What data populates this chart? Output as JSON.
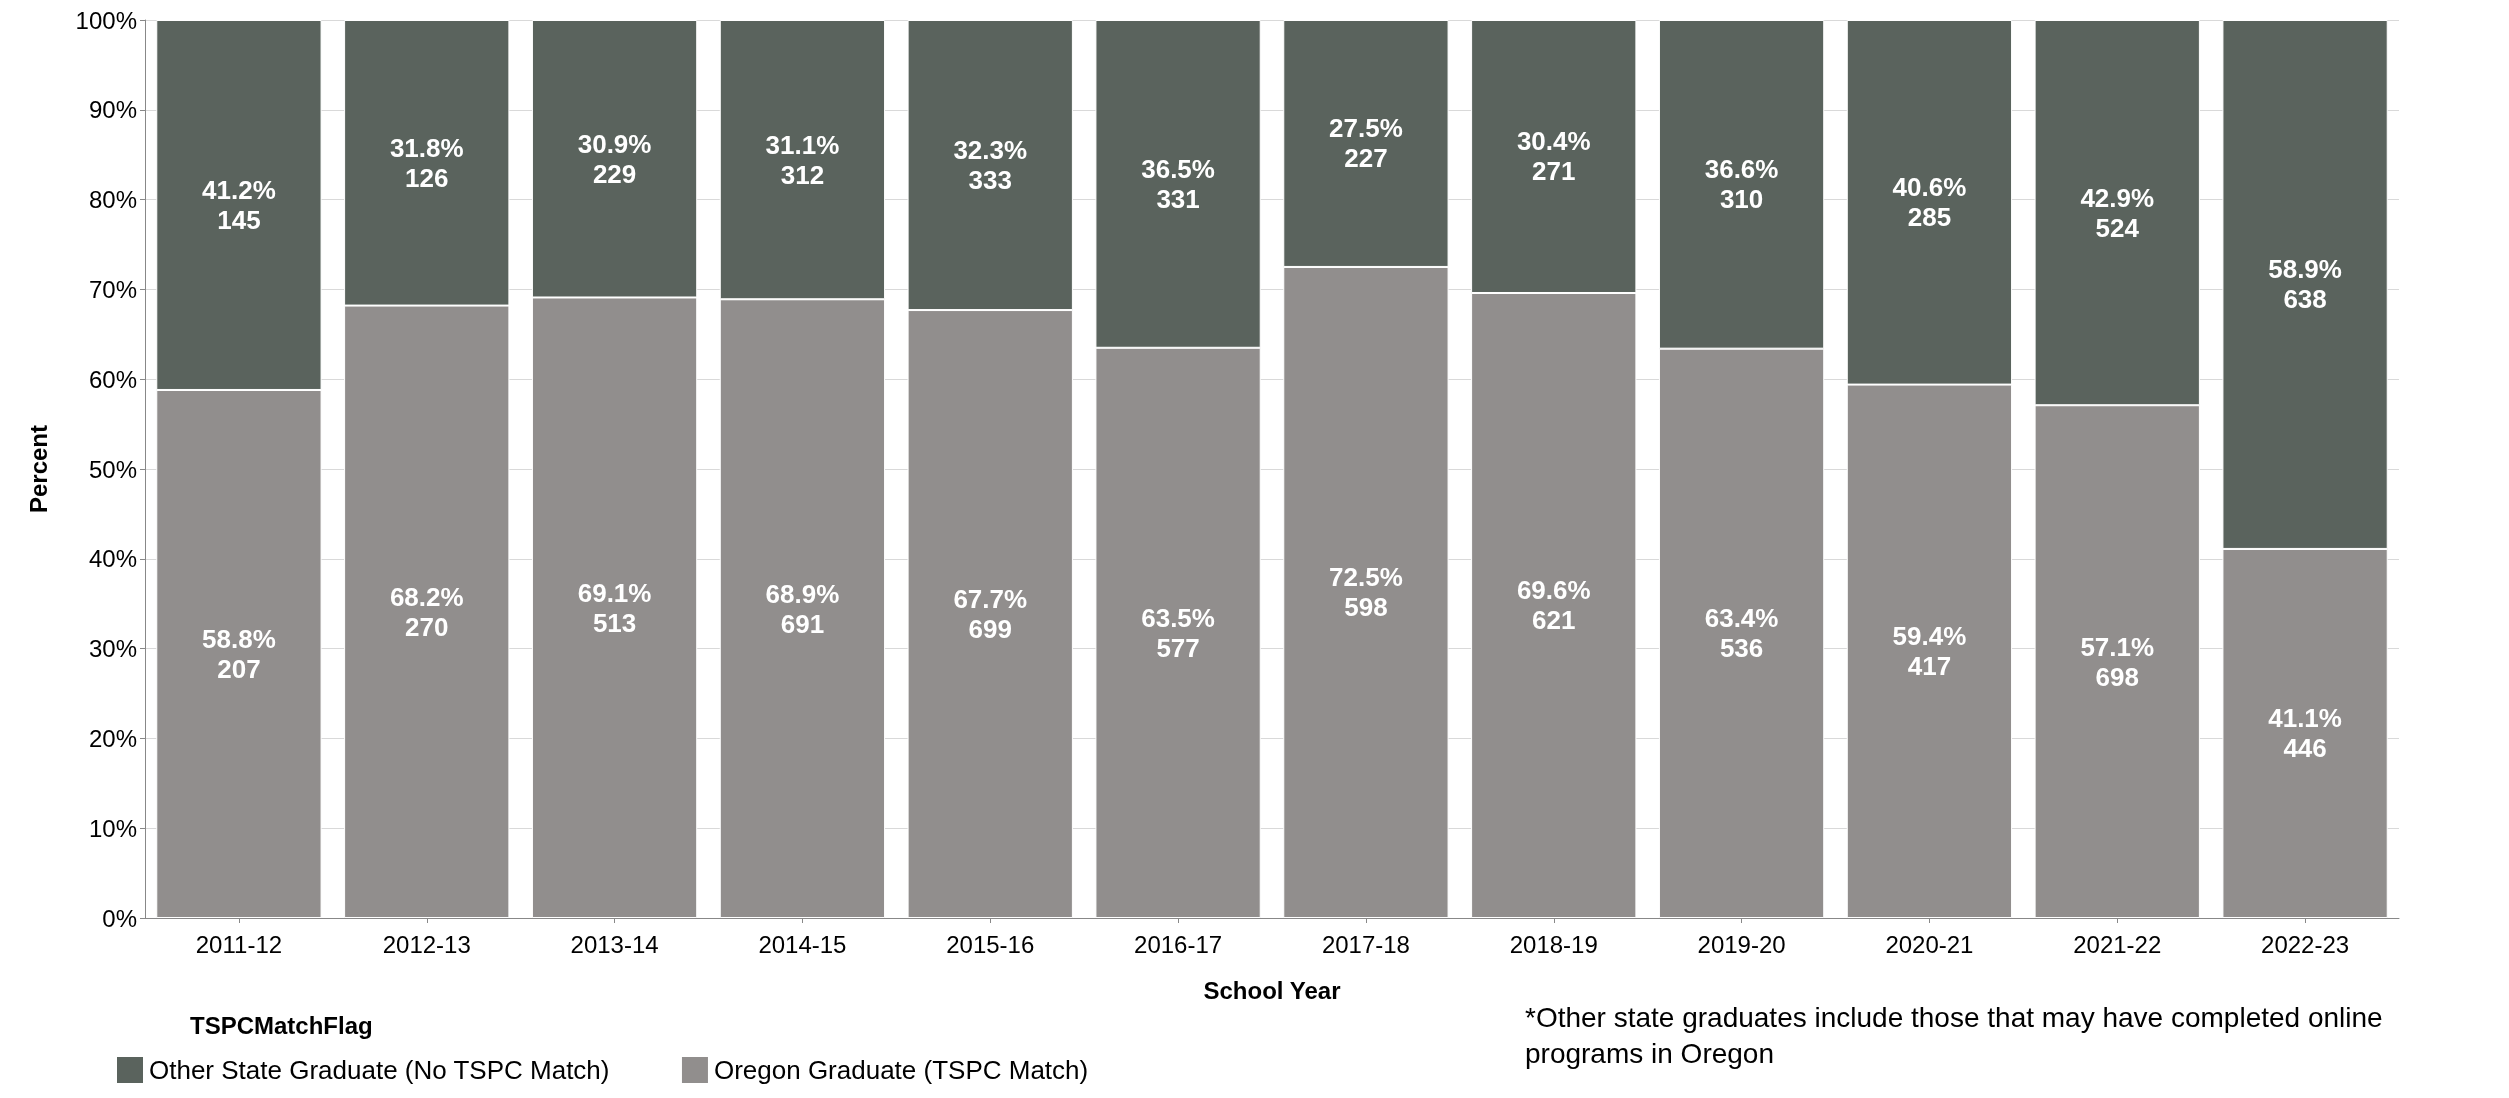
{
  "chart_data": {
    "type": "bar",
    "stacked": true,
    "xlabel": "School Year",
    "ylabel": "Percent",
    "legend_title": "TSPCMatchFlag",
    "legend": "bottom left",
    "grid": "y",
    "annotations": [
      "*Other state graduates include those that may have completed online programs in Oregon"
    ],
    "categories": [
      "2011-12",
      "2012-13",
      "2013-14",
      "2014-15",
      "2015-16",
      "2016-17",
      "2017-18",
      "2018-19",
      "2019-20",
      "2020-21",
      "2021-22",
      "2022-23"
    ],
    "ylim": [
      0,
      100
    ],
    "yticks": [
      {
        "value": 0,
        "label": "0%"
      },
      {
        "value": 10,
        "label": "10%"
      },
      {
        "value": 20,
        "label": "20%"
      },
      {
        "value": 30,
        "label": "30%"
      },
      {
        "value": 40,
        "label": "40%"
      },
      {
        "value": 50,
        "label": "50%"
      },
      {
        "value": 60,
        "label": "60%"
      },
      {
        "value": 70,
        "label": "70%"
      },
      {
        "value": 80,
        "label": "80%"
      },
      {
        "value": 90,
        "label": "90%"
      },
      {
        "value": 100,
        "label": "100%"
      }
    ],
    "series": [
      {
        "name": "Oregon Graduate (TSPC Match)",
        "color": "#918e8d",
        "values": [
          58.8,
          68.2,
          69.1,
          68.9,
          67.7,
          63.5,
          72.5,
          69.6,
          63.4,
          59.4,
          57.1,
          41.1
        ],
        "value_labels": [
          "58.8%\n207",
          "68.2%\n270",
          "69.1%\n513",
          "68.9%\n691",
          "67.7%\n699",
          "63.5%\n577",
          "72.5%\n598",
          "69.6%\n621",
          "63.4%\n536",
          "59.4%\n417",
          "57.1%\n698",
          "41.1%\n446"
        ]
      },
      {
        "name": "Other State Graduate (No TSPC Match)",
        "color": "#5a635d",
        "values": [
          41.2,
          31.8,
          30.9,
          31.1,
          32.3,
          36.5,
          27.5,
          30.4,
          36.6,
          40.6,
          42.9,
          58.9
        ],
        "value_labels": [
          "41.2%\n145",
          "31.8%\n126",
          "30.9%\n229",
          "31.1%\n312",
          "32.3%\n333",
          "36.5%\n331",
          "27.5%\n227",
          "30.4%\n271",
          "36.6%\n310",
          "40.6%\n285",
          "42.9%\n524",
          "58.9%\n638"
        ]
      }
    ]
  }
}
